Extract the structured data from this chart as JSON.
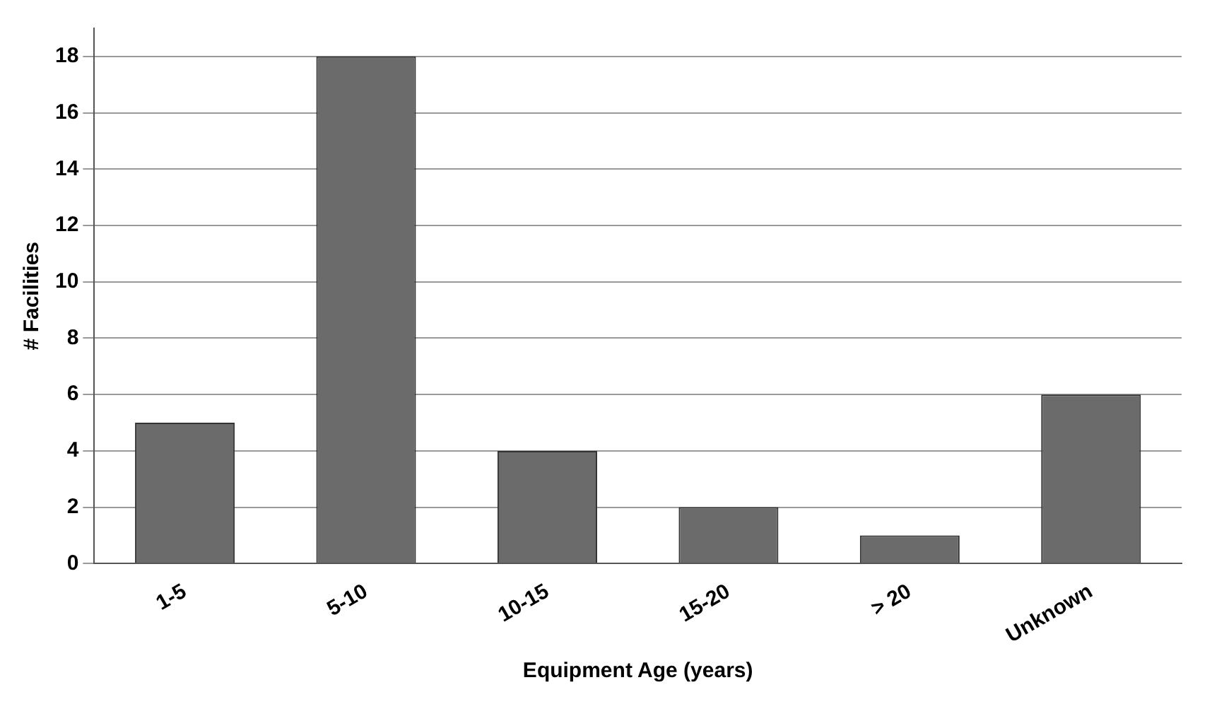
{
  "chart_data": {
    "type": "bar",
    "xlabel": "Equipment Age (years)",
    "ylabel": "# Facilities",
    "categories": [
      "1-5",
      "5-10",
      "10-15",
      "15-20",
      "> 20",
      "Unknown"
    ],
    "values": [
      5,
      18,
      4,
      2,
      1,
      6
    ],
    "color": "#6b6b6b",
    "ylim": [
      0,
      19
    ],
    "yticks": [
      0,
      2,
      4,
      6,
      8,
      10,
      12,
      14,
      16,
      18
    ],
    "grid": "y",
    "legend": false
  }
}
